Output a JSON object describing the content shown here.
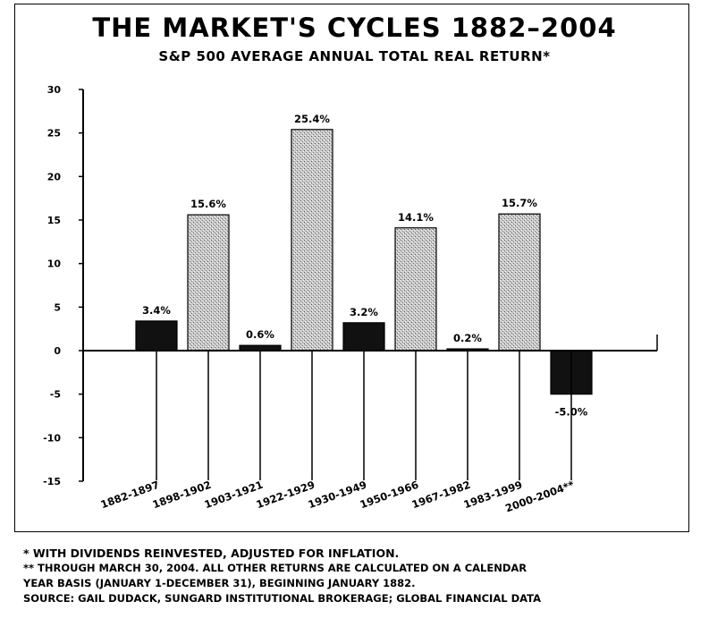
{
  "title": "THE MARKET'S CYCLES 1882–2004",
  "subtitle": "S&P 500 AVERAGE ANNUAL TOTAL REAL RETURN*",
  "chart_data": {
    "type": "bar",
    "title": "THE MARKET'S CYCLES 1882–2004",
    "subtitle": "S&P 500 AVERAGE ANNUAL TOTAL REAL RETURN*",
    "categories": [
      "1882-1897",
      "1898-1902",
      "1903-1921",
      "1922-1929",
      "1930-1949",
      "1950-1966",
      "1967-1982",
      "1983-1999",
      "2000-2004**"
    ],
    "values": [
      3.4,
      15.6,
      0.6,
      25.4,
      3.2,
      14.1,
      0.2,
      15.7,
      -5.0
    ],
    "data_labels": [
      "3.4%",
      "15.6%",
      "0.6%",
      "25.4%",
      "3.2%",
      "14.1%",
      "0.2%",
      "15.7%",
      "-5.0%"
    ],
    "bar_styles": [
      "solid",
      "stippled",
      "solid",
      "stippled",
      "solid",
      "stippled",
      "solid",
      "stippled",
      "solid"
    ],
    "colors": {
      "solid": "#111111",
      "stippled": "#bdbdbd"
    },
    "ylim": [
      -15,
      30
    ],
    "yticks": [
      -15,
      -10,
      -5,
      0,
      5,
      10,
      15,
      20,
      25,
      30
    ],
    "grid": false,
    "legend": "none"
  },
  "footnotes": [
    "* WITH DIVIDENDS REINVESTED, ADJUSTED FOR INFLATION.",
    "** THROUGH MARCH 30, 2004. ALL OTHER RETURNS ARE CALCULATED ON A CALENDAR",
    "YEAR BASIS (JANUARY 1-DECEMBER 31), BEGINNING JANUARY 1882.",
    "SOURCE: GAIL DUDACK, SUNGARD INSTITUTIONAL BROKERAGE; GLOBAL FINANCIAL DATA"
  ]
}
